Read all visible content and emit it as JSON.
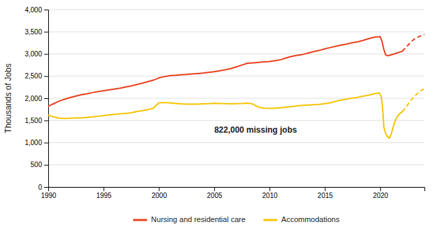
{
  "chart_data": {
    "type": "line",
    "ylabel": "Thousands of Jobs",
    "xlim": [
      1990,
      2024
    ],
    "ylim": [
      0,
      4000
    ],
    "xticks": [
      1990,
      1995,
      2000,
      2005,
      2010,
      2015,
      2020
    ],
    "yticks": [
      0,
      500,
      {
        "value": 1000,
        "label": "1,000"
      },
      {
        "value": 1500,
        "label": "1,500"
      },
      {
        "value": 2000,
        "label": "2,000"
      },
      {
        "value": 2500,
        "label": "2,500"
      },
      {
        "value": 3000,
        "label": "3,000"
      },
      {
        "value": 3500,
        "label": "3,500"
      },
      {
        "value": 4000,
        "label": "4,000"
      }
    ],
    "grid": true,
    "legend": "bottom",
    "annotations": [
      {
        "text": "822,000 missing jobs",
        "x": 2005,
        "y": 1280
      }
    ],
    "series": [
      {
        "name": "Nursing and residential care",
        "color": "#e8401c",
        "line_style": "solid",
        "x": [
          1990.0,
          1990.25,
          1990.5,
          1990.75,
          1991.0,
          1991.25,
          1991.5,
          1991.75,
          1992.0,
          1992.5,
          1993.0,
          1993.5,
          1994.0,
          1994.5,
          1995.0,
          1995.5,
          1996.0,
          1996.5,
          1997.0,
          1997.5,
          1998.0,
          1998.5,
          1999.0,
          1999.5,
          2000.0,
          2000.5,
          2001.0,
          2001.5,
          2002.0,
          2002.5,
          2003.0,
          2003.5,
          2004.0,
          2004.5,
          2005.0,
          2005.5,
          2006.0,
          2006.5,
          2007.0,
          2007.5,
          2008.0,
          2008.5,
          2009.0,
          2009.5,
          2010.0,
          2010.5,
          2011.0,
          2011.5,
          2012.0,
          2012.5,
          2013.0,
          2013.5,
          2014.0,
          2014.5,
          2015.0,
          2015.5,
          2016.0,
          2016.5,
          2017.0,
          2017.5,
          2018.0,
          2018.5,
          2019.0,
          2019.5,
          2020.0,
          2020.17,
          2020.33,
          2020.5,
          2020.67,
          2020.83,
          2021.0,
          2021.25,
          2021.5,
          2021.75,
          2022.0
        ],
        "values": [
          1820,
          1850,
          1880,
          1910,
          1940,
          1960,
          1980,
          2000,
          2020,
          2050,
          2080,
          2100,
          2130,
          2150,
          2170,
          2190,
          2210,
          2230,
          2255,
          2280,
          2310,
          2340,
          2375,
          2410,
          2460,
          2490,
          2510,
          2520,
          2530,
          2540,
          2550,
          2560,
          2570,
          2585,
          2600,
          2620,
          2645,
          2670,
          2710,
          2750,
          2790,
          2800,
          2810,
          2820,
          2830,
          2850,
          2870,
          2910,
          2945,
          2970,
          2990,
          3020,
          3055,
          3080,
          3115,
          3145,
          3175,
          3200,
          3225,
          3255,
          3275,
          3310,
          3350,
          3380,
          3390,
          3280,
          3100,
          2980,
          2960,
          2970,
          2980,
          3000,
          3020,
          3040,
          3060
        ]
      },
      {
        "color": "#e8401c",
        "line_style": "dashed",
        "x": [
          2022.0,
          2022.33,
          2022.67,
          2023.0,
          2023.33,
          2023.67,
          2024.0
        ],
        "values": [
          3060,
          3150,
          3240,
          3320,
          3370,
          3410,
          3440
        ]
      },
      {
        "name": "Accommodations",
        "color": "#f5c400",
        "line_style": "solid",
        "x": [
          1990.0,
          1990.25,
          1990.5,
          1990.75,
          1991.0,
          1991.5,
          1992.0,
          1992.5,
          1993.0,
          1993.5,
          1994.0,
          1994.5,
          1995.0,
          1995.5,
          1996.0,
          1996.5,
          1997.0,
          1997.5,
          1998.0,
          1998.5,
          1999.0,
          1999.5,
          2000.0,
          2000.5,
          2001.0,
          2001.5,
          2002.0,
          2002.5,
          2003.0,
          2003.5,
          2004.0,
          2004.5,
          2005.0,
          2005.5,
          2006.0,
          2006.5,
          2007.0,
          2007.5,
          2008.0,
          2008.5,
          2009.0,
          2009.5,
          2010.0,
          2010.5,
          2011.0,
          2011.5,
          2012.0,
          2012.5,
          2013.0,
          2013.5,
          2014.0,
          2014.5,
          2015.0,
          2015.5,
          2016.0,
          2016.5,
          2017.0,
          2017.5,
          2018.0,
          2018.5,
          2019.0,
          2019.5,
          2019.75,
          2019.92,
          2020.08,
          2020.17,
          2020.25,
          2020.33,
          2020.5,
          2020.67,
          2020.83,
          2021.0,
          2021.25,
          2021.5,
          2021.75,
          2022.0
        ],
        "values": [
          1620,
          1600,
          1580,
          1565,
          1550,
          1548,
          1550,
          1558,
          1560,
          1568,
          1580,
          1595,
          1610,
          1625,
          1640,
          1650,
          1660,
          1675,
          1700,
          1720,
          1745,
          1780,
          1900,
          1905,
          1895,
          1885,
          1875,
          1870,
          1868,
          1870,
          1875,
          1880,
          1888,
          1885,
          1880,
          1875,
          1878,
          1882,
          1890,
          1870,
          1800,
          1780,
          1775,
          1775,
          1785,
          1800,
          1815,
          1830,
          1840,
          1848,
          1858,
          1865,
          1880,
          1900,
          1935,
          1962,
          1985,
          2005,
          2025,
          2050,
          2075,
          2105,
          2118,
          2122,
          2050,
          1900,
          1650,
          1350,
          1200,
          1130,
          1100,
          1200,
          1420,
          1570,
          1650,
          1700
        ]
      },
      {
        "color": "#f5c400",
        "line_style": "dashed",
        "x": [
          2022.0,
          2022.33,
          2022.67,
          2023.0,
          2023.33,
          2023.67,
          2024.0
        ],
        "values": [
          1700,
          1800,
          1920,
          2020,
          2100,
          2170,
          2220
        ]
      }
    ]
  }
}
